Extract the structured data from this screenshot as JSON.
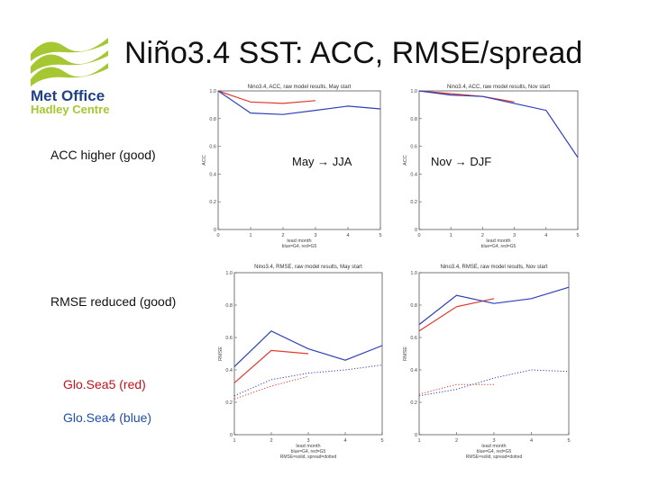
{
  "slide": {
    "title": "Niño3.4 SST: ACC, RMSE/spread",
    "logo": {
      "name": "Met Office",
      "subtitle": "Hadley Centre",
      "color": "#a5c731",
      "text_color": "#1f4287"
    },
    "notes": {
      "acc": "ACC higher (good)",
      "rmse": "RMSE reduced (good)",
      "gs5": "Glo.Sea5 (red)",
      "gs4": "Glo.Sea4 (blue)"
    },
    "labels": {
      "may": "May → JJA",
      "nov": "Nov → DJF"
    }
  },
  "colors": {
    "red": "#e0392f",
    "blue": "#2e3fb8"
  },
  "chart_data": [
    {
      "id": "acc-may",
      "type": "line",
      "title": "Nino3.4, ACC, raw model results, May start",
      "xlabel": "lead month",
      "xsub": "blue=G4, red=G5",
      "ylabel": "ACC",
      "xlim": [
        0,
        5
      ],
      "ylim": [
        0,
        1
      ],
      "xticks": [
        "0",
        "1",
        "2",
        "3",
        "4",
        "5"
      ],
      "yticks": [
        "0",
        "0.2",
        "0.4",
        "0.6",
        "0.8",
        "1.0"
      ],
      "series": [
        {
          "color": "red",
          "style": "solid",
          "x": [
            0,
            1,
            2,
            3
          ],
          "y": [
            1.0,
            0.92,
            0.91,
            0.93
          ]
        },
        {
          "color": "blue",
          "style": "solid",
          "x": [
            0,
            1,
            2,
            3,
            4,
            5
          ],
          "y": [
            1.0,
            0.84,
            0.83,
            0.86,
            0.89,
            0.87
          ]
        }
      ]
    },
    {
      "id": "acc-nov",
      "type": "line",
      "title": "Nino3.4, ACC, raw model results, Nov start",
      "xlabel": "lead month",
      "xsub": "blue=G4, red=G5",
      "ylabel": "ACC",
      "xlim": [
        0,
        5
      ],
      "ylim": [
        0,
        1
      ],
      "xticks": [
        "0",
        "1",
        "2",
        "3",
        "4",
        "5"
      ],
      "yticks": [
        "0",
        "0.2",
        "0.4",
        "0.6",
        "0.8",
        "1.0"
      ],
      "series": [
        {
          "color": "red",
          "style": "solid",
          "x": [
            0,
            1,
            2,
            3
          ],
          "y": [
            1.0,
            0.98,
            0.96,
            0.92
          ]
        },
        {
          "color": "blue",
          "style": "solid",
          "x": [
            0,
            1,
            2,
            3,
            4,
            5
          ],
          "y": [
            1.0,
            0.97,
            0.96,
            0.91,
            0.86,
            0.52
          ]
        }
      ]
    },
    {
      "id": "rmse-may",
      "type": "line",
      "title": "Nino3.4, RMSE, raw model results, May start",
      "xlabel": "lead month",
      "xsub": "blue=G4, red=G5",
      "xsub2": "RMSE=solid, spread=dotted",
      "ylabel": "RMSE",
      "xlim": [
        1,
        5
      ],
      "ylim": [
        0,
        1
      ],
      "xticks": [
        "1",
        "2",
        "3",
        "4",
        "5"
      ],
      "yticks": [
        "0",
        "0.2",
        "0.4",
        "0.6",
        "0.8",
        "1.0"
      ],
      "series": [
        {
          "color": "red",
          "style": "solid",
          "x": [
            1,
            2,
            3
          ],
          "y": [
            0.32,
            0.52,
            0.5
          ]
        },
        {
          "color": "blue",
          "style": "solid",
          "x": [
            1,
            2,
            3,
            4,
            5
          ],
          "y": [
            0.42,
            0.64,
            0.53,
            0.46,
            0.55
          ]
        },
        {
          "color": "red",
          "style": "dotted",
          "x": [
            1,
            2,
            3
          ],
          "y": [
            0.22,
            0.3,
            0.36
          ]
        },
        {
          "color": "blue",
          "style": "dotted",
          "x": [
            1,
            2,
            3,
            4,
            5
          ],
          "y": [
            0.24,
            0.34,
            0.38,
            0.4,
            0.43
          ]
        }
      ]
    },
    {
      "id": "rmse-nov",
      "type": "line",
      "title": "Nino3.4, RMSE, raw model results, Nov start",
      "xlabel": "lead month",
      "xsub": "blue=G4, red=G5",
      "xsub2": "RMSE=solid, spread=dotted",
      "ylabel": "RMSE",
      "xlim": [
        1,
        5
      ],
      "ylim": [
        0,
        1
      ],
      "xticks": [
        "1",
        "2",
        "3",
        "4",
        "5"
      ],
      "yticks": [
        "0",
        "0.2",
        "0.4",
        "0.6",
        "0.8",
        "1.0"
      ],
      "series": [
        {
          "color": "red",
          "style": "solid",
          "x": [
            1,
            2,
            3
          ],
          "y": [
            0.64,
            0.79,
            0.84
          ]
        },
        {
          "color": "blue",
          "style": "solid",
          "x": [
            1,
            2,
            3,
            4,
            5
          ],
          "y": [
            0.68,
            0.86,
            0.81,
            0.84,
            0.91
          ]
        },
        {
          "color": "red",
          "style": "dotted",
          "x": [
            1,
            2,
            3
          ],
          "y": [
            0.25,
            0.31,
            0.31
          ]
        },
        {
          "color": "blue",
          "style": "dotted",
          "x": [
            1,
            2,
            3,
            4,
            5
          ],
          "y": [
            0.24,
            0.28,
            0.35,
            0.4,
            0.39
          ]
        }
      ]
    }
  ]
}
